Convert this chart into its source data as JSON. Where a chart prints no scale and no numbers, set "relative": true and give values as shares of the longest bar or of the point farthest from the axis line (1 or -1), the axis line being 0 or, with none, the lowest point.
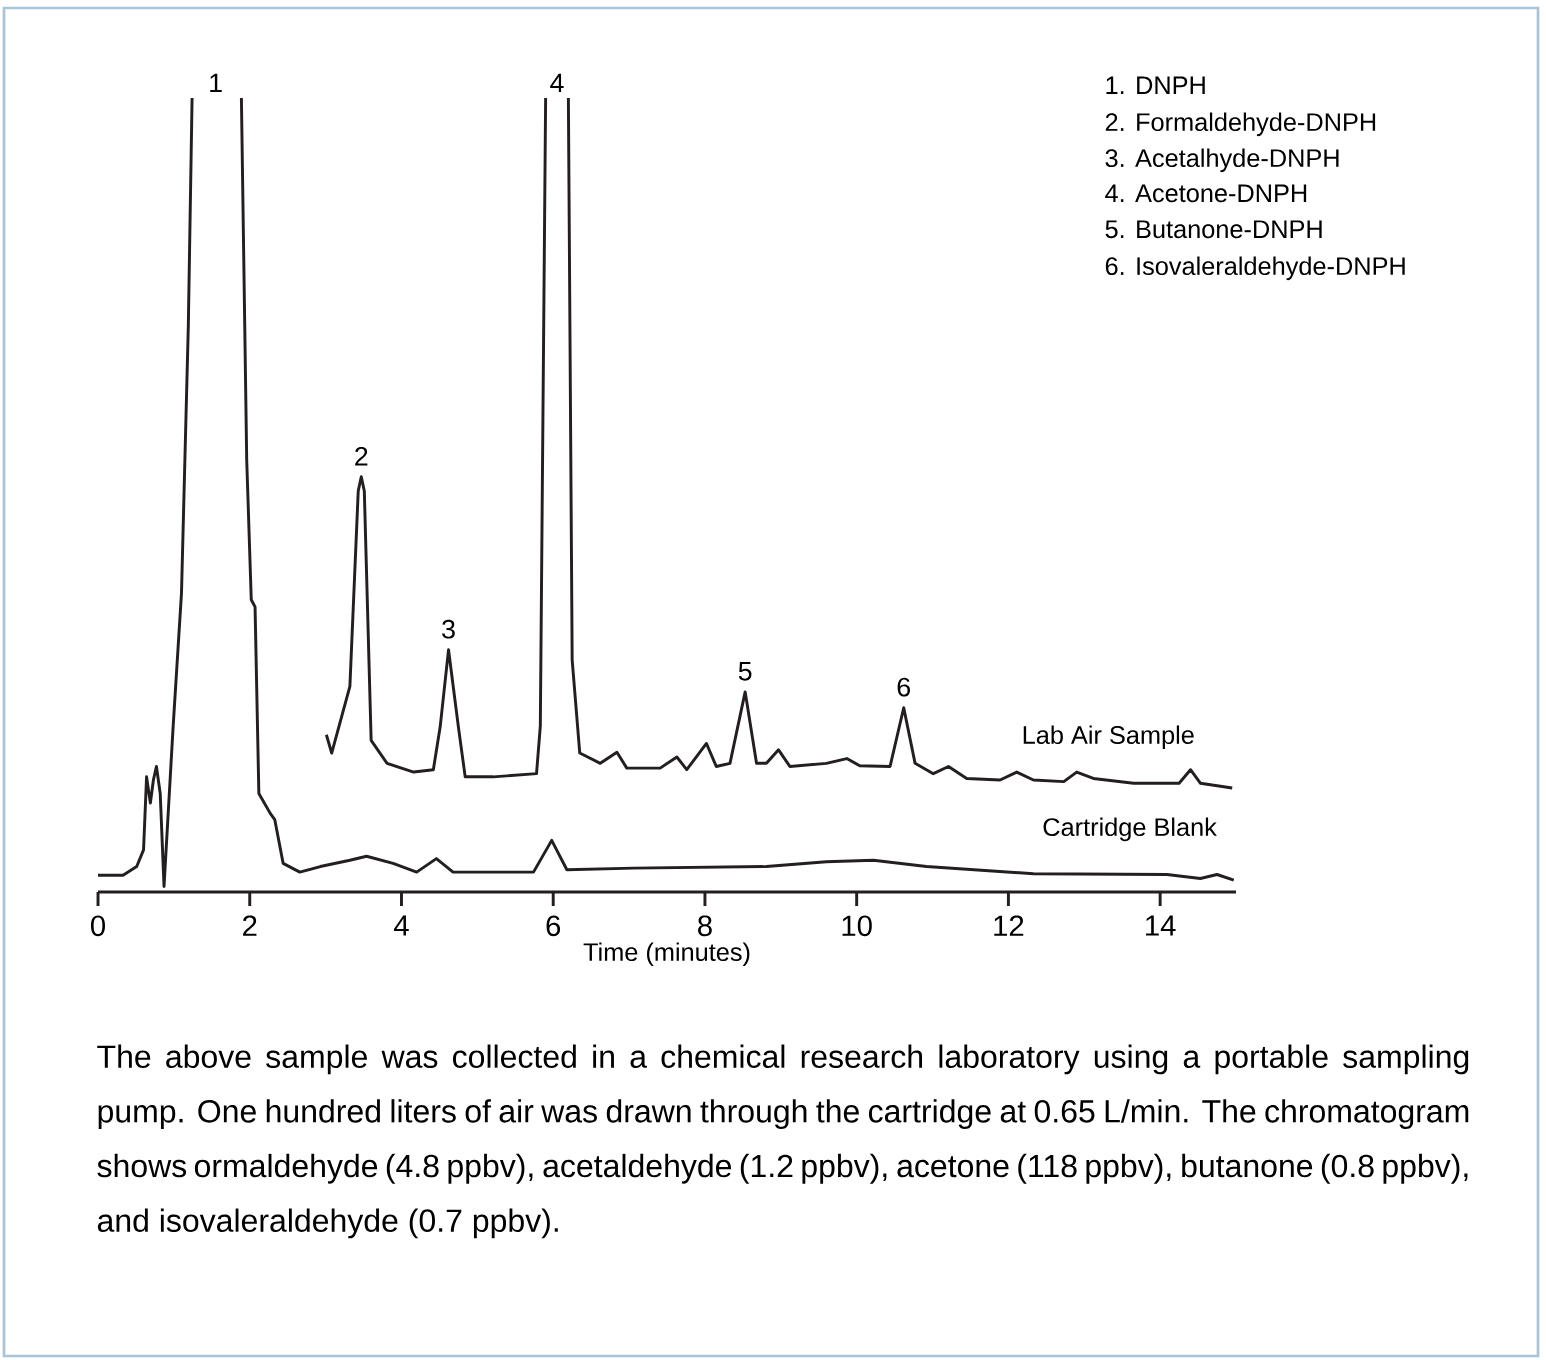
{
  "chart_data": {
    "type": "line",
    "relative": true,
    "xlabel": "Time (minutes)",
    "xlim": [
      0,
      15
    ],
    "xticks": [
      0,
      2,
      4,
      6,
      8,
      10,
      12,
      14
    ],
    "series": [
      {
        "name": "Lab Air Sample",
        "color": "#231f20",
        "x": [
          3.01,
          3.08,
          3.32,
          3.43,
          3.47,
          3.51,
          3.6,
          3.81,
          4.16,
          4.42,
          4.51,
          4.62,
          4.75,
          4.84,
          5.21,
          5.78,
          5.83,
          5.9,
          6.05,
          6.2,
          6.25,
          6.35,
          6.62,
          6.84,
          6.97,
          7.41,
          7.63,
          7.76,
          8.02,
          8.15,
          8.33,
          8.53,
          8.68,
          8.81,
          8.97,
          9.12,
          9.6,
          9.87,
          10.04,
          10.44,
          10.62,
          10.77,
          11.01,
          11.21,
          11.45,
          11.89,
          12.11,
          12.33,
          12.73,
          12.9,
          13.12,
          13.65,
          14.25,
          14.4,
          14.53,
          14.95
        ],
        "values": [
          0.198,
          0.175,
          0.259,
          0.505,
          0.523,
          0.505,
          0.191,
          0.162,
          0.151,
          0.154,
          0.208,
          0.305,
          0.208,
          0.145,
          0.145,
          0.149,
          0.209,
          1.0,
          null,
          1.0,
          0.292,
          0.175,
          0.162,
          0.176,
          0.156,
          0.156,
          0.17,
          0.154,
          0.187,
          0.158,
          0.162,
          0.252,
          0.162,
          0.162,
          0.179,
          0.158,
          0.162,
          0.168,
          0.159,
          0.158,
          0.232,
          0.162,
          0.149,
          0.158,
          0.143,
          0.141,
          0.151,
          0.141,
          0.139,
          0.151,
          0.143,
          0.137,
          0.137,
          0.154,
          0.137,
          0.131
        ]
      },
      {
        "name": "Cartridge Blank",
        "color": "#231f20",
        "x": [
          0.0,
          0.33,
          0.51,
          0.6,
          0.64,
          0.69,
          0.73,
          0.77,
          0.82,
          0.87,
          0.99,
          1.1,
          1.19,
          1.24,
          1.55,
          1.89,
          1.96,
          2.02,
          2.07,
          2.12,
          2.27,
          2.33,
          2.44,
          2.66,
          2.93,
          3.32,
          3.54,
          3.89,
          4.2,
          4.46,
          4.68,
          5.74,
          5.98,
          6.18,
          7.06,
          8.81,
          9.6,
          10.22,
          10.92,
          12.33,
          14.09,
          14.53,
          14.75,
          14.97
        ],
        "values": [
          0.021,
          0.021,
          0.032,
          0.053,
          0.145,
          0.112,
          0.141,
          0.158,
          0.124,
          0.007,
          0.208,
          0.376,
          0.712,
          1.0,
          null,
          1.0,
          0.544,
          0.368,
          0.359,
          0.124,
          0.099,
          0.091,
          0.036,
          0.025,
          0.032,
          0.04,
          0.045,
          0.036,
          0.025,
          0.042,
          0.025,
          0.025,
          0.065,
          0.028,
          0.03,
          0.032,
          0.038,
          0.04,
          0.032,
          0.023,
          0.022,
          0.017,
          0.022,
          0.015
        ]
      }
    ],
    "annotations": [
      "1",
      "4",
      {
        "text": "2",
        "x": 3.47,
        "y": 0.523
      },
      {
        "text": "3",
        "x": 4.62,
        "y": 0.305
      },
      {
        "text": "5",
        "x": 8.53,
        "y": 0.252
      },
      {
        "text": "6",
        "x": 10.62,
        "y": 0.232
      },
      "1.  DNPH",
      "2.  Formaldehyde-DNPH",
      "3.  Acetalhyde-DNPH",
      "4.  Acetone-DNPH",
      "5.  Butanone-DNPH",
      "6.  Isovaleraldehyde-DNPH",
      "The above sample was collected in a chemical research laboratory using a portable sampling pump. One hundred liters of air was drawn through the cartridge at 0.65 L/min. The chromatogram shows ormaldehyde (4.8 ppbv), acetaldehyde (1.2 ppbv), acetone (118 ppbv), butanone (0.8 ppbv), and isovaleraldehyde (0.7 ppbv)."
    ]
  }
}
